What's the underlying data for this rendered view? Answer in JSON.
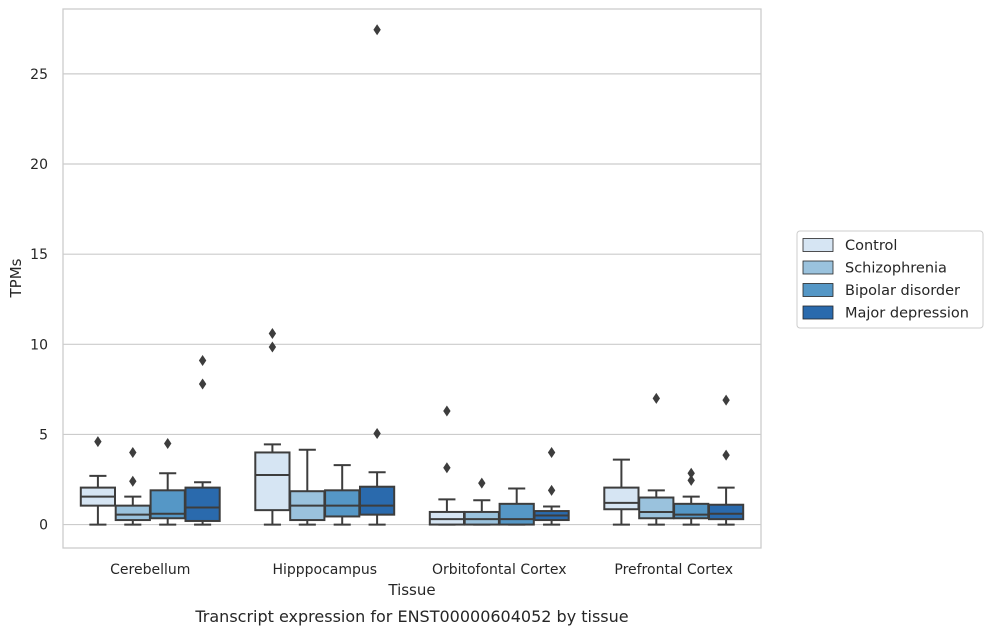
{
  "chart_data": {
    "type": "box",
    "xlabel": "Tissue",
    "ylabel": "TPMs",
    "caption": "Transcript expression for ENST00000604052 by tissue",
    "ylim": [
      -1.3,
      28.6
    ],
    "yticks": [
      0,
      5,
      10,
      15,
      20,
      25
    ],
    "categories": [
      "Cerebellum",
      "Hipppocampus",
      "Orbitofontal Cortex",
      "Prefrontal Cortex"
    ],
    "grid": "horizontal",
    "legend_position": "right",
    "series": [
      {
        "name": "Control",
        "color": "#d6e5f3",
        "boxes": [
          {
            "whislo": 0.0,
            "q1": 1.05,
            "med": 1.55,
            "q3": 2.05,
            "whishi": 2.7,
            "fliers": [
              4.6
            ]
          },
          {
            "whislo": 0.0,
            "q1": 0.8,
            "med": 2.75,
            "q3": 4.0,
            "whishi": 4.45,
            "fliers": [
              9.85,
              10.6
            ]
          },
          {
            "whislo": 0.0,
            "q1": 0.0,
            "med": 0.3,
            "q3": 0.7,
            "whishi": 1.4,
            "fliers": [
              3.15,
              6.3
            ]
          },
          {
            "whislo": 0.0,
            "q1": 0.85,
            "med": 1.2,
            "q3": 2.05,
            "whishi": 3.6,
            "fliers": []
          }
        ]
      },
      {
        "name": "Schizophrenia",
        "color": "#9ac2dd",
        "boxes": [
          {
            "whislo": 0.0,
            "q1": 0.25,
            "med": 0.55,
            "q3": 1.05,
            "whishi": 1.55,
            "fliers": [
              2.4,
              4.0
            ]
          },
          {
            "whislo": 0.0,
            "q1": 0.25,
            "med": 1.05,
            "q3": 1.85,
            "whishi": 4.15,
            "fliers": []
          },
          {
            "whislo": 0.0,
            "q1": 0.0,
            "med": 0.3,
            "q3": 0.7,
            "whishi": 1.35,
            "fliers": [
              2.3
            ]
          },
          {
            "whislo": 0.0,
            "q1": 0.35,
            "med": 0.7,
            "q3": 1.5,
            "whishi": 1.9,
            "fliers": [
              7.0
            ]
          }
        ]
      },
      {
        "name": "Bipolar disorder",
        "color": "#5597c6",
        "boxes": [
          {
            "whislo": 0.0,
            "q1": 0.35,
            "med": 0.6,
            "q3": 1.9,
            "whishi": 2.85,
            "fliers": [
              4.5
            ]
          },
          {
            "whislo": 0.0,
            "q1": 0.45,
            "med": 1.05,
            "q3": 1.9,
            "whishi": 3.3,
            "fliers": []
          },
          {
            "whislo": 0.0,
            "q1": 0.0,
            "med": 0.3,
            "q3": 1.15,
            "whishi": 2.0,
            "fliers": []
          },
          {
            "whislo": 0.0,
            "q1": 0.35,
            "med": 0.55,
            "q3": 1.15,
            "whishi": 1.55,
            "fliers": [
              2.45,
              2.85
            ]
          }
        ]
      },
      {
        "name": "Major depression",
        "color": "#2a6aad",
        "boxes": [
          {
            "whislo": 0.0,
            "q1": 0.2,
            "med": 0.95,
            "q3": 2.05,
            "whishi": 2.35,
            "fliers": [
              7.8,
              9.1
            ]
          },
          {
            "whislo": 0.0,
            "q1": 0.55,
            "med": 1.05,
            "q3": 2.1,
            "whishi": 2.9,
            "fliers": [
              5.05,
              27.45
            ]
          },
          {
            "whislo": 0.0,
            "q1": 0.25,
            "med": 0.5,
            "q3": 0.75,
            "whishi": 1.0,
            "fliers": [
              1.9,
              4.0
            ]
          },
          {
            "whislo": 0.0,
            "q1": 0.3,
            "med": 0.6,
            "q3": 1.1,
            "whishi": 2.05,
            "fliers": [
              3.85,
              6.9
            ]
          }
        ]
      }
    ]
  }
}
